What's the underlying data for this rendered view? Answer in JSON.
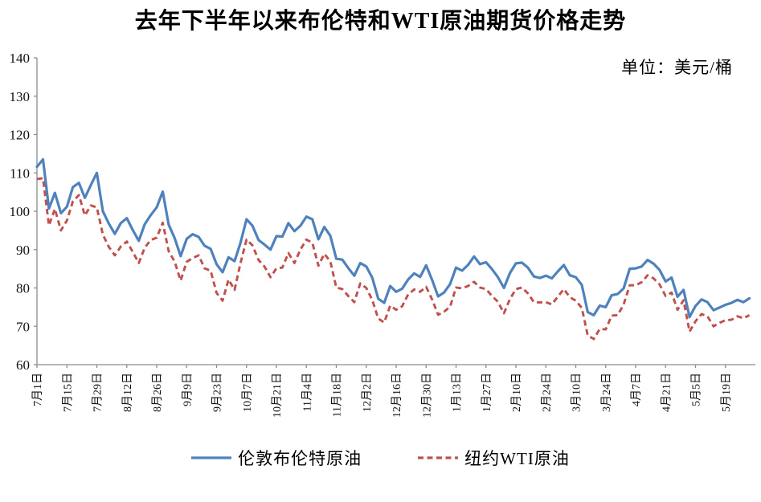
{
  "page": {
    "title": "去年下半年以来布伦特和WTI原油期货价格走势",
    "unit_label": "单位：美元/桶"
  },
  "chart_data": {
    "type": "line",
    "title": "去年下半年以来布伦特和WTI原油期货价格走势",
    "unit": "单位：美元/桶",
    "xlabel": "",
    "ylabel": "美元/桶",
    "ylim": [
      60,
      140
    ],
    "ytick_step": 10,
    "grid": false,
    "legend_position": "bottom",
    "axis_color": "#8c8c8c",
    "points_per_tick": 5,
    "x_tick_labels": [
      "7月1日",
      "7月15日",
      "7月29日",
      "8月12日",
      "8月26日",
      "9月9日",
      "9月23日",
      "10月7日",
      "10月21日",
      "11月4日",
      "11月18日",
      "12月2日",
      "12月16日",
      "12月30日",
      "1月13日",
      "1月27日",
      "2月10日",
      "2月24日",
      "3月10日",
      "3月24日",
      "4月7日",
      "4月21日",
      "5月5日",
      "5月19日"
    ],
    "series": [
      {
        "name": "伦敦布伦特原油",
        "color": "#4F81BD",
        "style": "solid",
        "values": [
          111.6,
          113.5,
          100.7,
          104.8,
          99.5,
          101.2,
          106.3,
          107.4,
          103.5,
          106.8,
          110.0,
          100.0,
          96.8,
          94.1,
          96.9,
          98.2,
          95.1,
          92.3,
          96.6,
          99.0,
          101.0,
          105.1,
          96.5,
          93.0,
          88.3,
          92.8,
          94.0,
          93.3,
          91.0,
          90.2,
          86.2,
          84.1,
          88.0,
          87.0,
          91.8,
          97.9,
          96.2,
          92.5,
          91.3,
          90.0,
          93.5,
          93.4,
          96.9,
          94.8,
          96.2,
          98.6,
          97.9,
          92.7,
          95.9,
          93.6,
          87.6,
          87.4,
          85.2,
          83.2,
          86.5,
          85.6,
          82.7,
          77.2,
          76.1,
          80.5,
          79.0,
          79.8,
          82.2,
          83.8,
          82.9,
          85.9,
          82.1,
          77.8,
          78.8,
          81.0,
          85.3,
          84.5,
          86.0,
          88.2,
          86.2,
          86.7,
          84.9,
          82.8,
          80.0,
          83.9,
          86.4,
          86.6,
          85.3,
          83.0,
          82.6,
          83.2,
          82.5,
          84.3,
          86.0,
          83.3,
          82.8,
          80.8,
          73.7,
          72.9,
          75.4,
          75.0,
          78.1,
          78.4,
          79.9,
          85.0,
          85.1,
          85.6,
          87.3,
          86.3,
          84.7,
          81.7,
          82.7,
          77.7,
          79.5,
          72.4,
          75.3,
          77.0,
          76.3,
          74.2,
          74.9,
          75.6,
          76.1,
          76.9,
          76.3,
          77.3
        ]
      },
      {
        "name": "纽约WTI原油",
        "color": "#C0504D",
        "style": "dashed",
        "values": [
          108.4,
          108.6,
          96.3,
          100.6,
          95.0,
          97.6,
          102.6,
          104.2,
          98.9,
          101.5,
          101.0,
          93.9,
          90.7,
          88.5,
          90.8,
          92.1,
          89.4,
          86.5,
          90.5,
          92.5,
          93.1,
          97.0,
          89.6,
          86.9,
          81.9,
          86.8,
          87.8,
          88.5,
          85.1,
          84.5,
          78.7,
          76.7,
          82.2,
          79.5,
          86.5,
          92.6,
          91.1,
          87.3,
          85.6,
          82.8,
          85.1,
          85.3,
          89.1,
          86.5,
          90.0,
          92.6,
          91.8,
          85.8,
          88.9,
          86.9,
          80.1,
          79.7,
          77.9,
          76.3,
          81.2,
          80.0,
          76.9,
          72.0,
          71.0,
          75.4,
          74.3,
          75.2,
          78.3,
          79.6,
          79.0,
          80.3,
          77.0,
          73.0,
          73.8,
          75.1,
          80.1,
          79.9,
          80.5,
          81.6,
          80.1,
          79.7,
          77.9,
          76.4,
          73.4,
          77.1,
          79.7,
          80.1,
          78.6,
          76.3,
          76.2,
          76.3,
          75.7,
          77.7,
          79.7,
          77.6,
          76.7,
          74.8,
          67.6,
          66.7,
          69.3,
          69.2,
          72.8,
          72.9,
          75.7,
          80.7,
          80.7,
          81.5,
          83.3,
          82.5,
          80.9,
          77.9,
          78.8,
          74.3,
          76.8,
          68.6,
          71.3,
          73.2,
          72.6,
          70.0,
          70.9,
          71.6,
          71.7,
          72.6,
          72.1,
          72.9
        ]
      }
    ]
  }
}
